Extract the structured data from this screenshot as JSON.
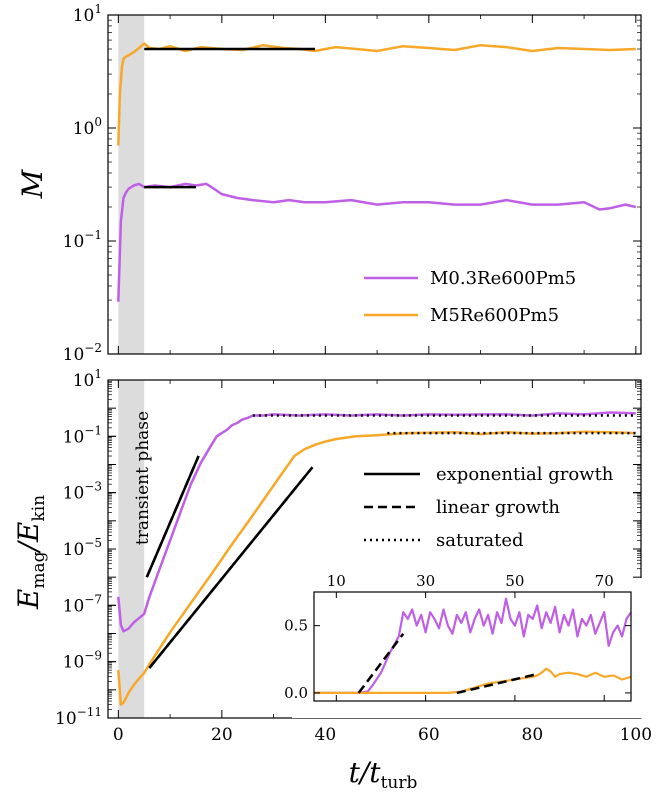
{
  "colors": {
    "subsonic": "#bf5fe6",
    "supersonic": "#f7a829",
    "fit": "#000000",
    "transient": "#dcdcdc"
  },
  "chart_data": [
    {
      "type": "line",
      "panel": "top",
      "yscale": "log",
      "xlim": [
        -2,
        101
      ],
      "ylim": [
        0.01,
        10
      ],
      "ylabel": "M",
      "xticks": [
        0,
        20,
        40,
        60,
        80,
        100
      ],
      "yticks": [
        {
          "base": "10",
          "exp": "1",
          "v": 10
        },
        {
          "base": "10",
          "exp": "0",
          "v": 1
        },
        {
          "base": "10",
          "exp": "−1",
          "v": 0.1
        },
        {
          "base": "10",
          "exp": "−2",
          "v": 0.01
        }
      ],
      "transient_range": [
        0,
        5
      ],
      "legend_position": "lower-right",
      "series": [
        {
          "name": "M0.3Re600Pm5",
          "key": "subsonic",
          "x": [
            0,
            0.5,
            1,
            1.5,
            2,
            3,
            4,
            5,
            7,
            10,
            13,
            15,
            17,
            18,
            20,
            23,
            26,
            30,
            33,
            36,
            40,
            45,
            50,
            55,
            60,
            65,
            70,
            75,
            80,
            85,
            90,
            93,
            95,
            98,
            100
          ],
          "y": [
            0.029,
            0.15,
            0.24,
            0.27,
            0.29,
            0.31,
            0.32,
            0.3,
            0.31,
            0.3,
            0.32,
            0.31,
            0.32,
            0.3,
            0.26,
            0.24,
            0.23,
            0.22,
            0.23,
            0.22,
            0.22,
            0.23,
            0.21,
            0.22,
            0.22,
            0.21,
            0.21,
            0.23,
            0.21,
            0.21,
            0.22,
            0.19,
            0.195,
            0.21,
            0.2
          ]
        },
        {
          "name": "M5Re600Pm5",
          "key": "supersonic",
          "x": [
            0,
            0.3,
            0.7,
            1,
            1.5,
            2,
            3,
            4,
            5,
            6,
            8,
            10,
            13,
            16,
            20,
            24,
            28,
            32,
            35,
            38,
            42,
            46,
            50,
            55,
            60,
            65,
            70,
            75,
            80,
            85,
            90,
            95,
            100
          ],
          "y": [
            0.7,
            2.0,
            3.5,
            4.1,
            4.3,
            4.4,
            4.7,
            5.1,
            5.6,
            5.1,
            5.0,
            5.3,
            4.8,
            5.2,
            5.0,
            4.9,
            5.4,
            5.1,
            5.0,
            4.8,
            5.2,
            5.0,
            4.8,
            5.3,
            5.1,
            4.9,
            5.4,
            5.2,
            4.8,
            5.1,
            5.0,
            4.9,
            5.0
          ]
        }
      ],
      "fits": [
        {
          "x": [
            5,
            15
          ],
          "y": [
            0.3,
            0.3
          ]
        },
        {
          "x": [
            5,
            38
          ],
          "y": [
            5.0,
            5.0
          ]
        }
      ]
    },
    {
      "type": "line",
      "panel": "bottom",
      "yscale": "log",
      "xlim": [
        -2,
        101
      ],
      "ylim": [
        1e-11,
        10
      ],
      "xlabel": "t/t",
      "xlabel_sub": "turb",
      "ylabel_num": "E",
      "ylabel_num_sub": "mag",
      "ylabel_den": "E",
      "ylabel_den_sub": "kin",
      "xticks": [
        0,
        20,
        40,
        60,
        80,
        100
      ],
      "yticks": [
        {
          "base": "10",
          "exp": "1",
          "v": 10
        },
        {
          "base": "10",
          "exp": "−1",
          "v": 0.1
        },
        {
          "base": "10",
          "exp": "−3",
          "v": 0.001
        },
        {
          "base": "10",
          "exp": "−5",
          "v": 1e-05
        },
        {
          "base": "10",
          "exp": "−7",
          "v": 1e-07
        },
        {
          "base": "10",
          "exp": "−9",
          "v": 1e-09
        },
        {
          "base": "10",
          "exp": "−11",
          "v": 1e-11
        }
      ],
      "annotation": "transient phase",
      "legend_position": "center-right",
      "legend": [
        "exponential growth",
        "linear growth",
        "saturated"
      ],
      "series": [
        {
          "name": "M0.3Re600Pm5",
          "key": "subsonic",
          "x": [
            0,
            0.5,
            1,
            2,
            3,
            4,
            5,
            6,
            8,
            10,
            12,
            14,
            16,
            18,
            19,
            20,
            21,
            22,
            23,
            24,
            25,
            26,
            28,
            30,
            35,
            40,
            45,
            50,
            55,
            60,
            65,
            70,
            75,
            80,
            85,
            90,
            95,
            100
          ],
          "y": [
            2e-07,
            2e-08,
            1.2e-08,
            1.5e-08,
            2.5e-08,
            3.5e-08,
            5e-08,
            2e-07,
            2e-06,
            2e-05,
            0.0002,
            0.002,
            0.012,
            0.05,
            0.1,
            0.13,
            0.17,
            0.25,
            0.3,
            0.4,
            0.45,
            0.55,
            0.55,
            0.6,
            0.55,
            0.6,
            0.55,
            0.6,
            0.55,
            0.6,
            0.58,
            0.6,
            0.6,
            0.55,
            0.65,
            0.6,
            0.7,
            0.65
          ]
        },
        {
          "name": "M5Re600Pm5",
          "key": "supersonic",
          "x": [
            0,
            0.5,
            1,
            2,
            3,
            4,
            5,
            6,
            8,
            10,
            14,
            18,
            22,
            26,
            30,
            34,
            36,
            38,
            40,
            42,
            44,
            46,
            48,
            50,
            53,
            56,
            60,
            65,
            70,
            75,
            80,
            85,
            90,
            95,
            100
          ],
          "y": [
            5e-10,
            3e-11,
            3.5e-11,
            8e-11,
            1.5e-10,
            2.5e-10,
            4e-10,
            8e-10,
            3e-09,
            1.1e-08,
            1.2e-07,
            1.3e-06,
            1.5e-05,
            0.00016,
            0.0018,
            0.02,
            0.035,
            0.05,
            0.065,
            0.08,
            0.09,
            0.1,
            0.105,
            0.11,
            0.12,
            0.13,
            0.135,
            0.14,
            0.12,
            0.14,
            0.125,
            0.13,
            0.145,
            0.14,
            0.13
          ]
        }
      ],
      "fits": [
        {
          "style": "solid",
          "x": [
            5.5,
            15.5
          ],
          "y": [
            1e-06,
            0.02
          ]
        },
        {
          "style": "solid",
          "x": [
            6,
            37.5
          ],
          "y": [
            6e-10,
            0.008
          ]
        },
        {
          "style": "dashed",
          "x": [
            5.5,
            15.5
          ],
          "y": [
            1e-06,
            0.02
          ]
        },
        {
          "style": "dashed",
          "x": [
            6,
            37.5
          ],
          "y": [
            6e-10,
            0.008
          ]
        },
        {
          "style": "dotted",
          "x": [
            26,
            100
          ],
          "y": [
            0.55,
            0.55
          ]
        },
        {
          "style": "dotted",
          "x": [
            52,
            100
          ],
          "y": [
            0.13,
            0.13
          ]
        }
      ],
      "inset": {
        "xlim": [
          5,
          76
        ],
        "ylim": [
          -0.06,
          0.75
        ],
        "xticks": [
          10,
          30,
          50,
          70
        ],
        "yticks": [
          "0.0",
          "0.5"
        ],
        "series": [
          {
            "key": "subsonic",
            "x": [
              5,
              10,
              15,
              17,
              18,
              20,
              22,
              24,
              25,
              26,
              27,
              28,
              29,
              30,
              31,
              32,
              33,
              34,
              35,
              36,
              37,
              38,
              39,
              40,
              41,
              42,
              43,
              44,
              45,
              46,
              47,
              48,
              49,
              50,
              51,
              52,
              53,
              54,
              55,
              56,
              57,
              58,
              59,
              60,
              61,
              62,
              63,
              64,
              65,
              66,
              67,
              68,
              69,
              70,
              71,
              72,
              73,
              74,
              75,
              76
            ],
            "y": [
              0,
              0,
              0,
              0.01,
              0.05,
              0.15,
              0.3,
              0.42,
              0.6,
              0.55,
              0.62,
              0.5,
              0.58,
              0.45,
              0.6,
              0.55,
              0.48,
              0.62,
              0.5,
              0.44,
              0.58,
              0.52,
              0.6,
              0.45,
              0.55,
              0.62,
              0.5,
              0.58,
              0.44,
              0.6,
              0.52,
              0.7,
              0.55,
              0.5,
              0.6,
              0.42,
              0.58,
              0.55,
              0.65,
              0.48,
              0.6,
              0.52,
              0.64,
              0.45,
              0.58,
              0.5,
              0.62,
              0.42,
              0.55,
              0.5,
              0.58,
              0.44,
              0.52,
              0.6,
              0.35,
              0.45,
              0.5,
              0.42,
              0.55,
              0.6
            ]
          },
          {
            "key": "supersonic",
            "x": [
              5,
              10,
              20,
              30,
              35,
              38,
              40,
              42,
              44,
              46,
              48,
              50,
              52,
              54,
              55,
              56,
              57,
              58,
              59,
              60,
              62,
              64,
              66,
              68,
              70,
              72,
              74,
              76
            ],
            "y": [
              0,
              0,
              0,
              0,
              0,
              0.01,
              0.03,
              0.05,
              0.07,
              0.08,
              0.09,
              0.1,
              0.11,
              0.12,
              0.13,
              0.15,
              0.18,
              0.16,
              0.12,
              0.14,
              0.15,
              0.14,
              0.12,
              0.15,
              0.12,
              0.13,
              0.1,
              0.12
            ]
          }
        ],
        "fits": [
          {
            "style": "dashed",
            "x": [
              15,
              25
            ],
            "y": [
              0,
              0.44
            ]
          },
          {
            "style": "dashed",
            "x": [
              37,
              55
            ],
            "y": [
              0,
              0.14
            ]
          }
        ]
      }
    }
  ]
}
